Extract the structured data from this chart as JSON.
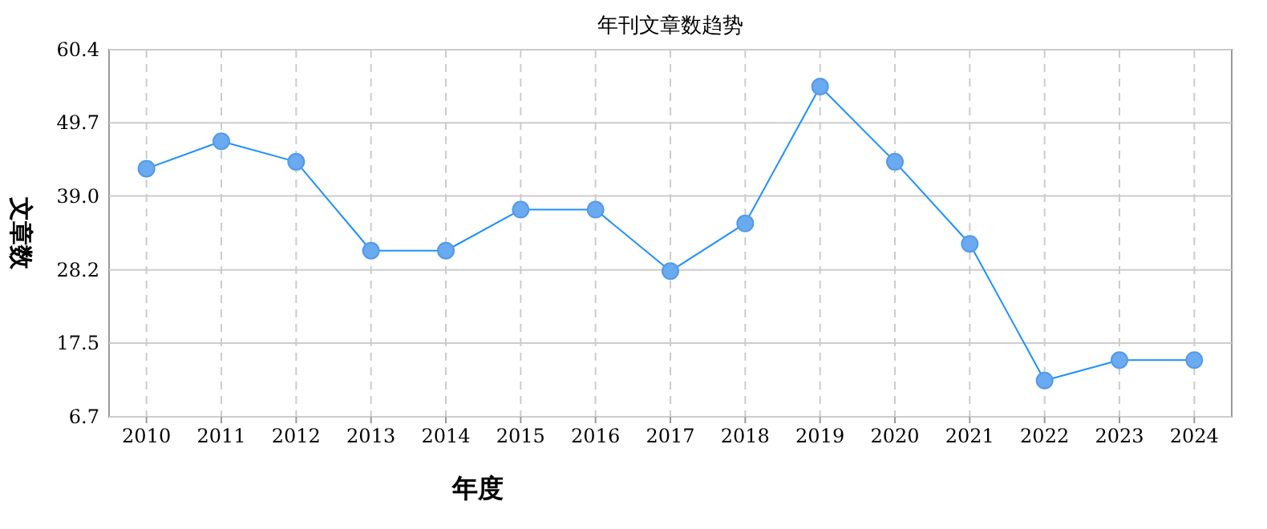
{
  "chart_data": {
    "type": "line",
    "title": "年刊文章数趋势",
    "xlabel": "年度",
    "ylabel": "文章数",
    "categories": [
      "2010",
      "2011",
      "2012",
      "2013",
      "2014",
      "2015",
      "2016",
      "2017",
      "2018",
      "2019",
      "2020",
      "2021",
      "2022",
      "2023",
      "2024"
    ],
    "series": [
      {
        "color": "#1e90ff",
        "values": [
          43,
          47,
          44,
          31,
          31,
          37,
          37,
          28,
          35,
          55,
          44,
          32,
          12,
          15,
          15
        ]
      }
    ],
    "ylim": [
      6.7,
      60.4
    ],
    "yticks": [
      6.7,
      17.5,
      28.2,
      {
        "value": 39,
        "label": "39.0"
      },
      49.7,
      60.4
    ],
    "grid": true,
    "marker": "circle",
    "line_style": "solid"
  }
}
